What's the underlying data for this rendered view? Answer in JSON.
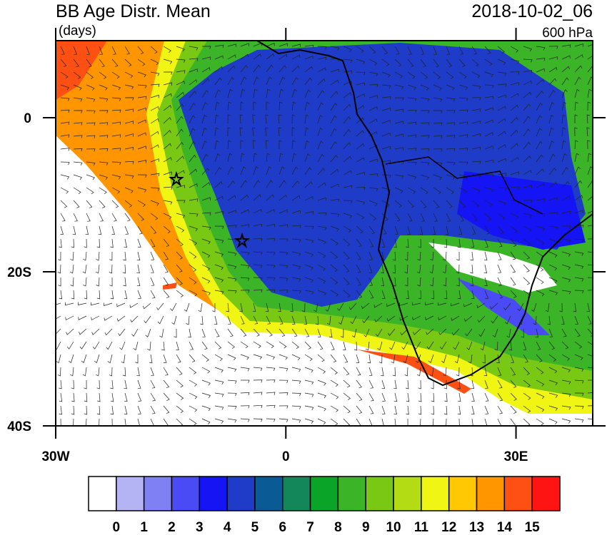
{
  "title": "BB Age Distr. Mean",
  "units": "(days)",
  "datetime": "2018-10-02_06",
  "level": "600 hPa",
  "map": {
    "xlim": [
      -30,
      40
    ],
    "ylim": [
      -40,
      10
    ],
    "xticks": [
      {
        "value": -30,
        "label": "30W"
      },
      0,
      {
        "value": 30,
        "label": "30E"
      }
    ],
    "yticks": [
      0,
      {
        "value": -20,
        "label": "20S"
      },
      {
        "value": -40,
        "label": "40S"
      }
    ]
  },
  "colorbar": {
    "colors": [
      "#ffffff",
      "#b4b4f5",
      "#8080f5",
      "#4b4bf5",
      "#1414f5",
      "#1e3cc8",
      "#0a5a96",
      "#14875a",
      "#0aa528",
      "#3cb428",
      "#78c814",
      "#b4dc14",
      "#f0f514",
      "#ffc800",
      "#ff9600",
      "#ff5014",
      "#ff1414"
    ],
    "labels": [
      0,
      1,
      2,
      3,
      4,
      5,
      6,
      7,
      8,
      9,
      10,
      11,
      12,
      13,
      14,
      15
    ]
  }
}
